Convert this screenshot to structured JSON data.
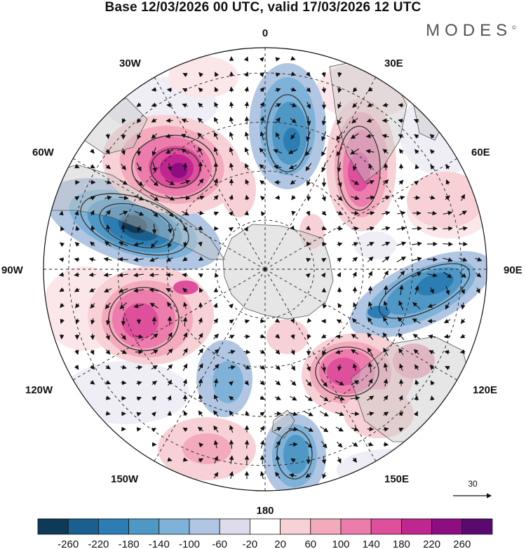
{
  "title": "Base 12/03/2026 00 UTC, valid 17/03/2026 12 UTC",
  "brand": "MODES",
  "brand_mark": "©",
  "map": {
    "projection": "south-polar-stereographic",
    "longitude_labels": {
      "north": "0",
      "south": "180",
      "west": "90W",
      "east": "90E",
      "nw_upper": "30W",
      "nw_lower": "60W",
      "ne_upper": "30E",
      "ne_lower": "60E",
      "sw_upper": "120W",
      "sw_lower": "150W",
      "se_upper": "120E",
      "se_lower": "150E"
    },
    "vector_reference": "30",
    "anomaly_centers": [
      {
        "sign": "negative",
        "value": -260,
        "near": "60W-90W"
      },
      {
        "sign": "positive",
        "value": 220,
        "near": "30W-60W"
      },
      {
        "sign": "negative",
        "value": -140,
        "near": "0-30E"
      },
      {
        "sign": "positive",
        "value": 220,
        "near": "30E-60E"
      },
      {
        "sign": "negative",
        "value": -180,
        "near": "90E"
      },
      {
        "sign": "positive",
        "value": 180,
        "near": "90W-120W"
      },
      {
        "sign": "positive",
        "value": 180,
        "near": "120E"
      },
      {
        "sign": "negative",
        "value": -140,
        "near": "150E-180"
      },
      {
        "sign": "negative",
        "value": -100,
        "near": "150W-180"
      },
      {
        "sign": "positive",
        "value": 60,
        "near": "150W"
      }
    ]
  },
  "colorbar": {
    "ticks": [
      "-260",
      "-220",
      "-180",
      "-140",
      "-100",
      "-60",
      "-20",
      "20",
      "60",
      "100",
      "140",
      "180",
      "220",
      "260"
    ],
    "colors": [
      "#0e3a5a",
      "#1a5f8e",
      "#2b7db3",
      "#4f98c6",
      "#7fb2d8",
      "#b1c6e3",
      "#dcdcec",
      "#ffffff",
      "#f7d1d6",
      "#f3aabd",
      "#ec7cab",
      "#de4f9c",
      "#c0268f",
      "#8e0e82",
      "#5a0a6e"
    ]
  }
}
